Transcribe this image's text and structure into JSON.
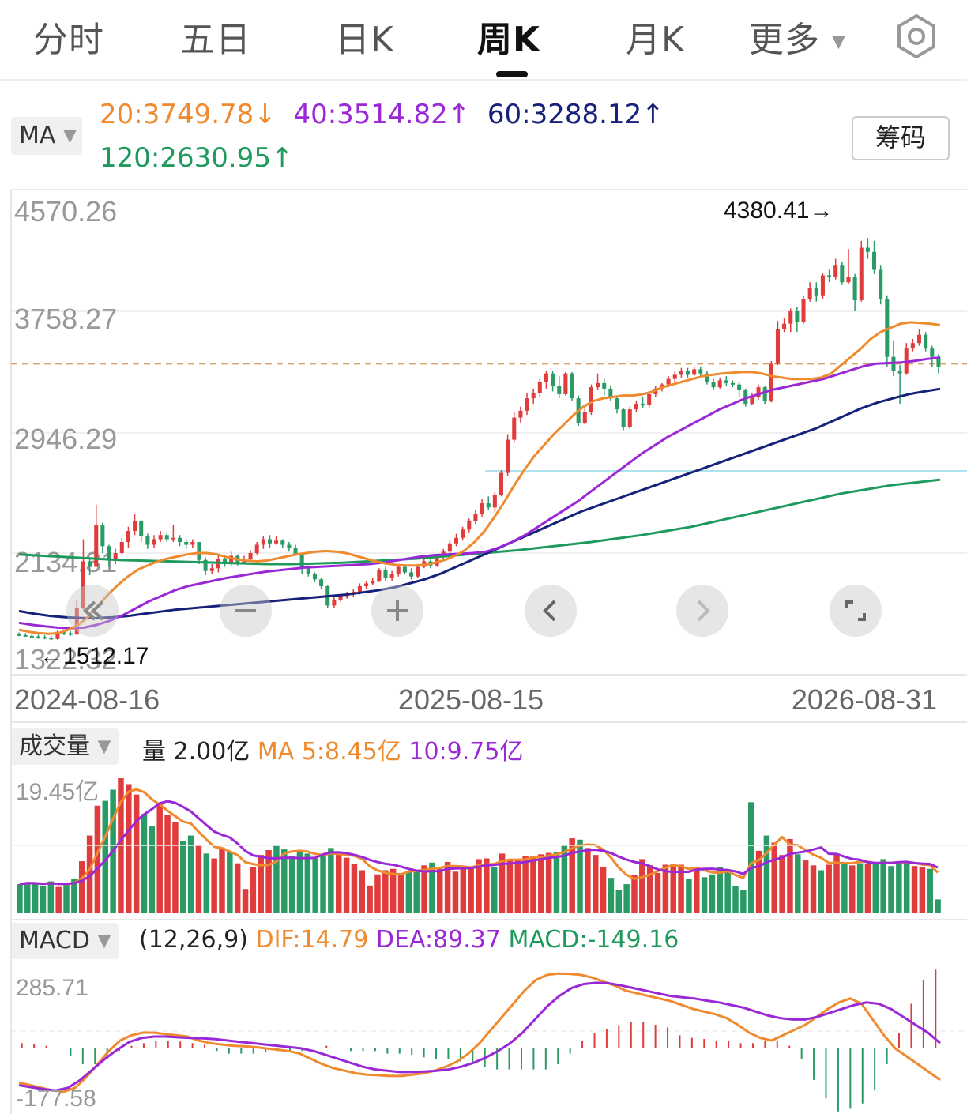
{
  "tabs": [
    {
      "label": "分时",
      "active": false
    },
    {
      "label": "五日",
      "active": false
    },
    {
      "label": "日K",
      "active": false
    },
    {
      "label": "周K",
      "active": true
    },
    {
      "label": "月K",
      "active": false
    },
    {
      "label": "更多",
      "active": false
    }
  ],
  "ma_panel": {
    "selector_label": "MA",
    "ma20": "20:3749.78",
    "ma20_arrow": "↓",
    "ma40": "40:3514.82",
    "ma40_arrow": "↑",
    "ma60": "60:3288.12",
    "ma60_arrow": "↑",
    "ma120": "120:2630.95",
    "ma120_arrow": "↑",
    "chip_button": "筹码"
  },
  "volume_panel": {
    "selector_label": "成交量",
    "volume": "量 2.00亿",
    "ma5": "MA 5:8.45亿",
    "ma10": "10:9.75亿",
    "top_label": "19.45亿"
  },
  "macd_panel": {
    "selector_label": "MACD",
    "params": "(12,26,9)",
    "dif": "DIF:14.79",
    "dea": "DEA:89.37",
    "macd": "MACD:-149.16",
    "top_label": "285.71",
    "bottom_label": "-177.58"
  },
  "colors": {
    "up": "#e03c3c",
    "down": "#2b9b66",
    "ma20": "#ef8a2e",
    "ma40": "#9a28d6",
    "ma60": "#16217a",
    "ma120": "#1e9a5c"
  },
  "controls": [
    "rewind-icon",
    "zoom-out-icon",
    "zoom-in-icon",
    "prev-icon",
    "next-icon",
    "fullscreen-icon"
  ],
  "chart_data": {
    "type": "candlestick",
    "y_ticks": [
      "4570.26",
      "3758.27",
      "2946.29",
      "2134.31",
      "1322.32"
    ],
    "y_range": [
      1322.32,
      4570.26
    ],
    "x_ticks": [
      "2024-08-16",
      "2025-08-15",
      "2026-08-31"
    ],
    "max_label": "4380.41→",
    "min_label": "←1512.17",
    "reference_line": 3470,
    "price_rows": [
      [
        1512,
        1508,
        1525,
        1498
      ],
      [
        1506,
        1500,
        1520,
        1495
      ],
      [
        1500,
        1496,
        1515,
        1488
      ],
      [
        1496,
        1492,
        1510,
        1480
      ],
      [
        1492,
        1486,
        1505,
        1475
      ],
      [
        1486,
        1478,
        1500,
        1470
      ],
      [
        1478,
        1530,
        1540,
        1470
      ],
      [
        1530,
        1520,
        1545,
        1505
      ],
      [
        1520,
        1510,
        1535,
        1500
      ],
      [
        1510,
        1700,
        1760,
        1510
      ],
      [
        1700,
        2040,
        2200,
        1690
      ],
      [
        2040,
        2000,
        2060,
        1940
      ],
      [
        2000,
        2300,
        2450,
        2000
      ],
      [
        2300,
        2150,
        2320,
        2100
      ],
      [
        2150,
        2050,
        2160,
        2000
      ],
      [
        2050,
        2100,
        2130,
        2020
      ],
      [
        2100,
        2180,
        2210,
        2090
      ],
      [
        2180,
        2260,
        2290,
        2140
      ],
      [
        2260,
        2330,
        2380,
        2230
      ],
      [
        2330,
        2220,
        2340,
        2180
      ],
      [
        2220,
        2160,
        2240,
        2130
      ],
      [
        2160,
        2200,
        2230,
        2140
      ],
      [
        2200,
        2230,
        2260,
        2180
      ],
      [
        2230,
        2200,
        2250,
        2180
      ],
      [
        2200,
        2210,
        2300,
        2180
      ],
      [
        2210,
        2180,
        2230,
        2150
      ],
      [
        2180,
        2160,
        2200,
        2130
      ],
      [
        2160,
        2180,
        2200,
        2140
      ],
      [
        2180,
        2050,
        2180,
        2020
      ],
      [
        2050,
        1970,
        2070,
        1940
      ],
      [
        1970,
        1990,
        2020,
        1950
      ],
      [
        1990,
        2060,
        2080,
        1960
      ],
      [
        2060,
        2020,
        2080,
        2000
      ],
      [
        2020,
        2080,
        2110,
        2010
      ],
      [
        2080,
        2030,
        2090,
        2010
      ],
      [
        2030,
        2060,
        2080,
        2020
      ],
      [
        2060,
        2100,
        2120,
        2040
      ],
      [
        2100,
        2160,
        2180,
        2090
      ],
      [
        2160,
        2200,
        2220,
        2130
      ],
      [
        2200,
        2170,
        2230,
        2140
      ],
      [
        2170,
        2190,
        2220,
        2160
      ],
      [
        2190,
        2160,
        2200,
        2140
      ],
      [
        2160,
        2140,
        2180,
        2110
      ],
      [
        2140,
        2090,
        2160,
        2080
      ],
      [
        2090,
        1990,
        2100,
        1950
      ],
      [
        1990,
        1950,
        2010,
        1930
      ],
      [
        1950,
        1910,
        1960,
        1890
      ],
      [
        1910,
        1860,
        1920,
        1840
      ],
      [
        1860,
        1720,
        1870,
        1700
      ],
      [
        1720,
        1760,
        1780,
        1700
      ],
      [
        1760,
        1790,
        1800,
        1750
      ],
      [
        1790,
        1800,
        1820,
        1770
      ],
      [
        1800,
        1820,
        1840,
        1780
      ],
      [
        1820,
        1860,
        1880,
        1800
      ],
      [
        1860,
        1880,
        1900,
        1840
      ],
      [
        1880,
        1900,
        1920,
        1870
      ],
      [
        1900,
        1980,
        1990,
        1890
      ],
      [
        1980,
        1920,
        2000,
        1900
      ],
      [
        1920,
        1950,
        1970,
        1900
      ],
      [
        1950,
        2000,
        2010,
        1930
      ],
      [
        2000,
        1960,
        2020,
        1950
      ],
      [
        1960,
        1930,
        1990,
        1910
      ],
      [
        1930,
        2000,
        2010,
        1920
      ],
      [
        2000,
        2040,
        2060,
        1990
      ],
      [
        2040,
        2010,
        2060,
        1990
      ],
      [
        2010,
        2080,
        2090,
        2000
      ],
      [
        2080,
        2110,
        2130,
        2060
      ],
      [
        2110,
        2170,
        2190,
        2090
      ],
      [
        2170,
        2210,
        2240,
        2150
      ],
      [
        2210,
        2270,
        2290,
        2190
      ],
      [
        2270,
        2330,
        2350,
        2250
      ],
      [
        2330,
        2380,
        2410,
        2310
      ],
      [
        2380,
        2460,
        2490,
        2360
      ],
      [
        2460,
        2430,
        2510,
        2410
      ],
      [
        2430,
        2520,
        2540,
        2400
      ],
      [
        2520,
        2680,
        2700,
        2510
      ],
      [
        2680,
        2920,
        2960,
        2660
      ],
      [
        2920,
        3080,
        3120,
        2900
      ],
      [
        3080,
        3130,
        3160,
        3040
      ],
      [
        3130,
        3220,
        3260,
        3100
      ],
      [
        3220,
        3260,
        3290,
        3180
      ],
      [
        3260,
        3340,
        3360,
        3230
      ],
      [
        3340,
        3400,
        3420,
        3290
      ],
      [
        3400,
        3310,
        3420,
        3270
      ],
      [
        3310,
        3250,
        3380,
        3220
      ],
      [
        3250,
        3400,
        3410,
        3240
      ],
      [
        3400,
        3220,
        3410,
        3200
      ],
      [
        3220,
        3040,
        3240,
        3020
      ],
      [
        3040,
        3120,
        3160,
        3030
      ],
      [
        3120,
        3300,
        3320,
        3100
      ],
      [
        3300,
        3330,
        3400,
        3280
      ],
      [
        3330,
        3290,
        3360,
        3240
      ],
      [
        3290,
        3220,
        3310,
        3200
      ],
      [
        3220,
        3140,
        3240,
        3110
      ],
      [
        3140,
        3010,
        3150,
        2990
      ],
      [
        3010,
        3140,
        3160,
        3000
      ],
      [
        3140,
        3180,
        3200,
        3120
      ],
      [
        3180,
        3170,
        3230,
        3150
      ],
      [
        3170,
        3250,
        3260,
        3150
      ],
      [
        3250,
        3290,
        3310,
        3230
      ],
      [
        3290,
        3320,
        3330,
        3270
      ],
      [
        3320,
        3360,
        3380,
        3300
      ],
      [
        3360,
        3390,
        3420,
        3340
      ],
      [
        3390,
        3420,
        3440,
        3370
      ],
      [
        3420,
        3390,
        3440,
        3370
      ],
      [
        3390,
        3430,
        3450,
        3380
      ],
      [
        3430,
        3400,
        3450,
        3380
      ],
      [
        3400,
        3340,
        3420,
        3320
      ],
      [
        3340,
        3300,
        3360,
        3280
      ],
      [
        3300,
        3350,
        3370,
        3290
      ],
      [
        3350,
        3330,
        3380,
        3310
      ],
      [
        3330,
        3320,
        3350,
        3300
      ],
      [
        3320,
        3280,
        3340,
        3230
      ],
      [
        3280,
        3180,
        3290,
        3160
      ],
      [
        3180,
        3230,
        3260,
        3170
      ],
      [
        3230,
        3300,
        3320,
        3210
      ],
      [
        3300,
        3200,
        3310,
        3180
      ],
      [
        3200,
        3470,
        3490,
        3190
      ],
      [
        3470,
        3720,
        3780,
        3460
      ],
      [
        3720,
        3760,
        3800,
        3700
      ],
      [
        3760,
        3850,
        3870,
        3700
      ],
      [
        3850,
        3770,
        3880,
        3700
      ],
      [
        3770,
        3940,
        3960,
        3760
      ],
      [
        3940,
        4020,
        4060,
        3920
      ],
      [
        4020,
        3960,
        4060,
        3920
      ],
      [
        3960,
        4110,
        4130,
        3940
      ],
      [
        4110,
        4100,
        4150,
        4060
      ],
      [
        4100,
        4180,
        4230,
        4080
      ],
      [
        4180,
        4060,
        4210,
        4040
      ],
      [
        4060,
        4100,
        4300,
        4050
      ],
      [
        4100,
        3930,
        4120,
        3850
      ],
      [
        3930,
        4310,
        4360,
        3920
      ],
      [
        4310,
        4280,
        4380,
        4230
      ],
      [
        4280,
        4150,
        4360,
        4120
      ],
      [
        4150,
        3940,
        4180,
        3900
      ],
      [
        3940,
        3520,
        3960,
        3450
      ],
      [
        3520,
        3420,
        3640,
        3380
      ],
      [
        3420,
        3400,
        3460,
        3180
      ],
      [
        3400,
        3580,
        3620,
        3390
      ],
      [
        3580,
        3620,
        3650,
        3560
      ],
      [
        3620,
        3680,
        3720,
        3600
      ],
      [
        3680,
        3580,
        3700,
        3560
      ],
      [
        3580,
        3520,
        3600,
        3450
      ],
      [
        3520,
        3450,
        3540,
        3400
      ]
    ],
    "ma20": [
      1545,
      1530,
      1520,
      1515,
      1520,
      1545,
      1580,
      1640,
      1720,
      1800,
      1870,
      1930,
      1980,
      2010,
      2040,
      2060,
      2075,
      2090,
      2100,
      2100,
      2090,
      2070,
      2055,
      2045,
      2040,
      2045,
      2060,
      2075,
      2090,
      2100,
      2110,
      2115,
      2110,
      2100,
      2080,
      2060,
      2040,
      2025,
      2015,
      2010,
      2010,
      2015,
      2030,
      2050,
      2080,
      2120,
      2180,
      2260,
      2360,
      2470,
      2590,
      2700,
      2800,
      2880,
      2960,
      3030,
      3100,
      3160,
      3200,
      3220,
      3230,
      3240,
      3240,
      3250,
      3270,
      3300,
      3320,
      3340,
      3360,
      3380,
      3390,
      3400,
      3405,
      3410,
      3410,
      3400,
      3380,
      3370,
      3360,
      3360,
      3360,
      3370,
      3400,
      3460,
      3520,
      3580,
      3650,
      3700,
      3730,
      3760,
      3770,
      3765,
      3760,
      3750
    ],
    "ma40": [
      1595,
      1580,
      1570,
      1560,
      1555,
      1560,
      1580,
      1610,
      1650,
      1700,
      1750,
      1790,
      1830,
      1860,
      1880,
      1900,
      1920,
      1935,
      1950,
      1965,
      1975,
      1985,
      1995,
      2000,
      2005,
      2010,
      2015,
      2020,
      2030,
      2045,
      2060,
      2075,
      2085,
      2090,
      2095,
      2100,
      2110,
      2140,
      2180,
      2230,
      2290,
      2350,
      2410,
      2470,
      2540,
      2610,
      2680,
      2750,
      2820,
      2880,
      2940,
      2990,
      3040,
      3090,
      3140,
      3180,
      3220,
      3250,
      3280,
      3300,
      3320,
      3340,
      3360,
      3390,
      3420,
      3450,
      3470,
      3475,
      3480,
      3490,
      3505,
      3515
    ],
    "ma60": [
      1680,
      1660,
      1645,
      1635,
      1630,
      1630,
      1635,
      1645,
      1660,
      1675,
      1690,
      1700,
      1710,
      1720,
      1730,
      1740,
      1750,
      1760,
      1770,
      1780,
      1790,
      1800,
      1815,
      1830,
      1850,
      1880,
      1910,
      1950,
      2000,
      2050,
      2100,
      2150,
      2200,
      2250,
      2300,
      2350,
      2400,
      2440,
      2480,
      2520,
      2560,
      2600,
      2640,
      2680,
      2720,
      2760,
      2800,
      2840,
      2880,
      2920,
      2960,
      3000,
      3050,
      3100,
      3150,
      3190,
      3220,
      3250,
      3270,
      3288
    ],
    "ma120": [
      2090,
      2080,
      2070,
      2060,
      2050,
      2045,
      2040,
      2035,
      2030,
      2025,
      2020,
      2020,
      2025,
      2030,
      2040,
      2050,
      2060,
      2075,
      2090,
      2105,
      2120,
      2140,
      2160,
      2180,
      2205,
      2230,
      2260,
      2290,
      2330,
      2370,
      2410,
      2450,
      2490,
      2530,
      2560,
      2590,
      2610,
      2631
    ],
    "volume": [
      4.2,
      4.5,
      4.3,
      4.0,
      4.6,
      3.8,
      4.4,
      4.9,
      7.5,
      11.2,
      15.5,
      16.2,
      17.8,
      19.45,
      18.6,
      17.1,
      14.3,
      12.5,
      15.8,
      14.2,
      13.1,
      10.4,
      11.2,
      9.8,
      8.6,
      7.9,
      9.4,
      8.8,
      7.2,
      3.5,
      6.6,
      8.4,
      9.1,
      9.7,
      9.2,
      8.2,
      8.8,
      8.6,
      7.9,
      8.4,
      9.4,
      8.5,
      8.0,
      7.1,
      6.2,
      4.0,
      5.6,
      6.2,
      6.4,
      5.8,
      6.1,
      6.0,
      6.9,
      7.3,
      6.4,
      7.4,
      6.0,
      6.6,
      6.6,
      7.8,
      7.9,
      6.7,
      8.6,
      7.6,
      7.7,
      8.2,
      8.3,
      8.5,
      8.7,
      8.8,
      9.9,
      10.8,
      10.6,
      9.4,
      8.4,
      6.6,
      5.1,
      3.4,
      4.2,
      5.5,
      7.8,
      6.9,
      5.8,
      7.0,
      7.1,
      7.0,
      5.0,
      6.7,
      5.2,
      5.6,
      6.7,
      6.1,
      3.9,
      3.3,
      16.0,
      9.0,
      11.2,
      10.2,
      8.4,
      10.7,
      8.5,
      7.7,
      6.9,
      6.2,
      7.0,
      8.6,
      7.4,
      6.9,
      7.2,
      7.1,
      7.4,
      7.8,
      6.8,
      7.4,
      7.5,
      6.8,
      6.6,
      6.4,
      2.0
    ],
    "macd_dif": [
      -130,
      -140,
      -150,
      -160,
      -165,
      -150,
      -110,
      -60,
      -10,
      30,
      50,
      60,
      60,
      55,
      50,
      45,
      30,
      20,
      15,
      10,
      8,
      5,
      0,
      -5,
      -10,
      -20,
      -40,
      -60,
      -75,
      -85,
      -95,
      -100,
      -102,
      -105,
      -105,
      -100,
      -95,
      -85,
      -70,
      -50,
      -20,
      20,
      70,
      120,
      170,
      220,
      260,
      280,
      285,
      284,
      280,
      270,
      255,
      240,
      220,
      210,
      200,
      190,
      180,
      165,
      150,
      140,
      130,
      115,
      90,
      60,
      40,
      30,
      50,
      70,
      90,
      120,
      150,
      175,
      190,
      170,
      110,
      50,
      0,
      -30,
      -60,
      -90,
      -120
    ],
    "macd_dea": [
      -140,
      -148,
      -155,
      -160,
      -150,
      -120,
      -80,
      -40,
      -5,
      25,
      40,
      45,
      45,
      42,
      40,
      38,
      35,
      30,
      25,
      20,
      15,
      10,
      5,
      0,
      -10,
      -25,
      -40,
      -55,
      -70,
      -80,
      -85,
      -90,
      -90,
      -88,
      -85,
      -80,
      -70,
      -55,
      -35,
      -10,
      20,
      60,
      110,
      160,
      200,
      230,
      245,
      250,
      248,
      240,
      230,
      220,
      210,
      200,
      195,
      190,
      182,
      175,
      165,
      155,
      140,
      125,
      115,
      110,
      110,
      120,
      135,
      150,
      165,
      175,
      170,
      150,
      120,
      90,
      60,
      20
    ]
  }
}
